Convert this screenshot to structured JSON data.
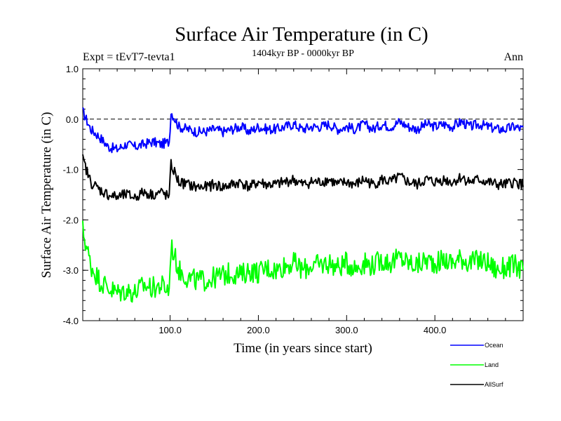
{
  "chart_data": {
    "type": "line",
    "title": "Surface Air Temperature (in C)",
    "subtitle": "1404kyr BP - 0000kyr BP",
    "left_label": "Expt = tEvT7-tevta1",
    "right_label": "Ann",
    "xlabel": "Time (in years since start)",
    "ylabel": "Surface Air Temperature (in C)",
    "xlim": [
      1,
      500
    ],
    "ylim": [
      -4.0,
      1.0
    ],
    "xticks": [
      100,
      200,
      300,
      400
    ],
    "xtick_labels": [
      "100.0",
      "200.0",
      "300.0",
      "400.0"
    ],
    "yticks": [
      1.0,
      0.0,
      -1.0,
      -2.0,
      -3.0,
      -4.0
    ],
    "ytick_labels": [
      "1.0",
      "0.0",
      "-1.0",
      "-2.0",
      "-3.0",
      "-4.0"
    ],
    "reference_line": 0.0,
    "legend_position": "bottom-right",
    "series": [
      {
        "name": "Ocean",
        "color": "#0000ff",
        "x": [
          1,
          10,
          20,
          30,
          40,
          50,
          60,
          70,
          80,
          90,
          99,
          101,
          110,
          120,
          130,
          140,
          150,
          160,
          170,
          180,
          190,
          200,
          210,
          220,
          230,
          240,
          250,
          260,
          270,
          280,
          290,
          300,
          310,
          320,
          330,
          340,
          350,
          360,
          370,
          380,
          390,
          400,
          410,
          420,
          430,
          440,
          450,
          460,
          470,
          480,
          490,
          500
        ],
        "y": [
          0.15,
          -0.2,
          -0.35,
          -0.55,
          -0.6,
          -0.5,
          -0.55,
          -0.5,
          -0.45,
          -0.5,
          -0.45,
          0.15,
          -0.15,
          -0.2,
          -0.25,
          -0.25,
          -0.2,
          -0.25,
          -0.2,
          -0.15,
          -0.25,
          -0.15,
          -0.2,
          -0.2,
          -0.15,
          -0.1,
          -0.2,
          -0.15,
          -0.15,
          -0.1,
          -0.2,
          -0.15,
          -0.2,
          -0.1,
          -0.2,
          -0.1,
          -0.15,
          -0.05,
          -0.15,
          -0.2,
          -0.1,
          -0.15,
          -0.1,
          -0.15,
          -0.05,
          -0.15,
          -0.1,
          -0.15,
          -0.2,
          -0.2,
          -0.15,
          -0.2
        ]
      },
      {
        "name": "Land",
        "color": "#00ff00",
        "x": [
          1,
          10,
          20,
          30,
          40,
          50,
          60,
          70,
          80,
          90,
          99,
          101,
          110,
          120,
          130,
          140,
          150,
          160,
          170,
          180,
          190,
          200,
          210,
          220,
          230,
          240,
          250,
          260,
          270,
          280,
          290,
          300,
          310,
          320,
          330,
          340,
          350,
          360,
          370,
          380,
          390,
          400,
          410,
          420,
          430,
          440,
          450,
          460,
          470,
          480,
          490,
          500
        ],
        "y": [
          -2.2,
          -2.9,
          -3.2,
          -3.35,
          -3.45,
          -3.4,
          -3.45,
          -3.3,
          -3.35,
          -3.3,
          -3.4,
          -2.5,
          -3.0,
          -3.15,
          -3.2,
          -3.2,
          -3.15,
          -3.1,
          -3.05,
          -3.1,
          -3.0,
          -3.05,
          -2.95,
          -3.0,
          -2.9,
          -2.85,
          -3.0,
          -2.9,
          -2.9,
          -2.85,
          -2.95,
          -2.85,
          -2.95,
          -2.85,
          -2.9,
          -2.8,
          -2.85,
          -2.75,
          -2.85,
          -2.9,
          -2.8,
          -2.85,
          -2.8,
          -2.85,
          -2.75,
          -2.85,
          -2.8,
          -2.85,
          -3.0,
          -2.95,
          -2.9,
          -3.0
        ]
      },
      {
        "name": "AllSurf",
        "color": "#000000",
        "x": [
          1,
          10,
          20,
          30,
          40,
          50,
          60,
          70,
          80,
          90,
          99,
          101,
          110,
          120,
          130,
          140,
          150,
          160,
          170,
          180,
          190,
          200,
          210,
          220,
          230,
          240,
          250,
          260,
          270,
          280,
          290,
          300,
          310,
          320,
          330,
          340,
          350,
          360,
          370,
          380,
          390,
          400,
          410,
          420,
          430,
          440,
          450,
          460,
          470,
          480,
          490,
          500
        ],
        "y": [
          -0.8,
          -1.25,
          -1.4,
          -1.5,
          -1.55,
          -1.5,
          -1.55,
          -1.45,
          -1.5,
          -1.45,
          -1.55,
          -0.9,
          -1.25,
          -1.3,
          -1.35,
          -1.35,
          -1.3,
          -1.35,
          -1.3,
          -1.25,
          -1.35,
          -1.25,
          -1.3,
          -1.3,
          -1.25,
          -1.2,
          -1.3,
          -1.25,
          -1.25,
          -1.2,
          -1.3,
          -1.25,
          -1.3,
          -1.2,
          -1.3,
          -1.2,
          -1.25,
          -1.15,
          -1.25,
          -1.3,
          -1.2,
          -1.25,
          -1.2,
          -1.25,
          -1.15,
          -1.25,
          -1.2,
          -1.25,
          -1.3,
          -1.3,
          -1.25,
          -1.3
        ]
      }
    ]
  }
}
